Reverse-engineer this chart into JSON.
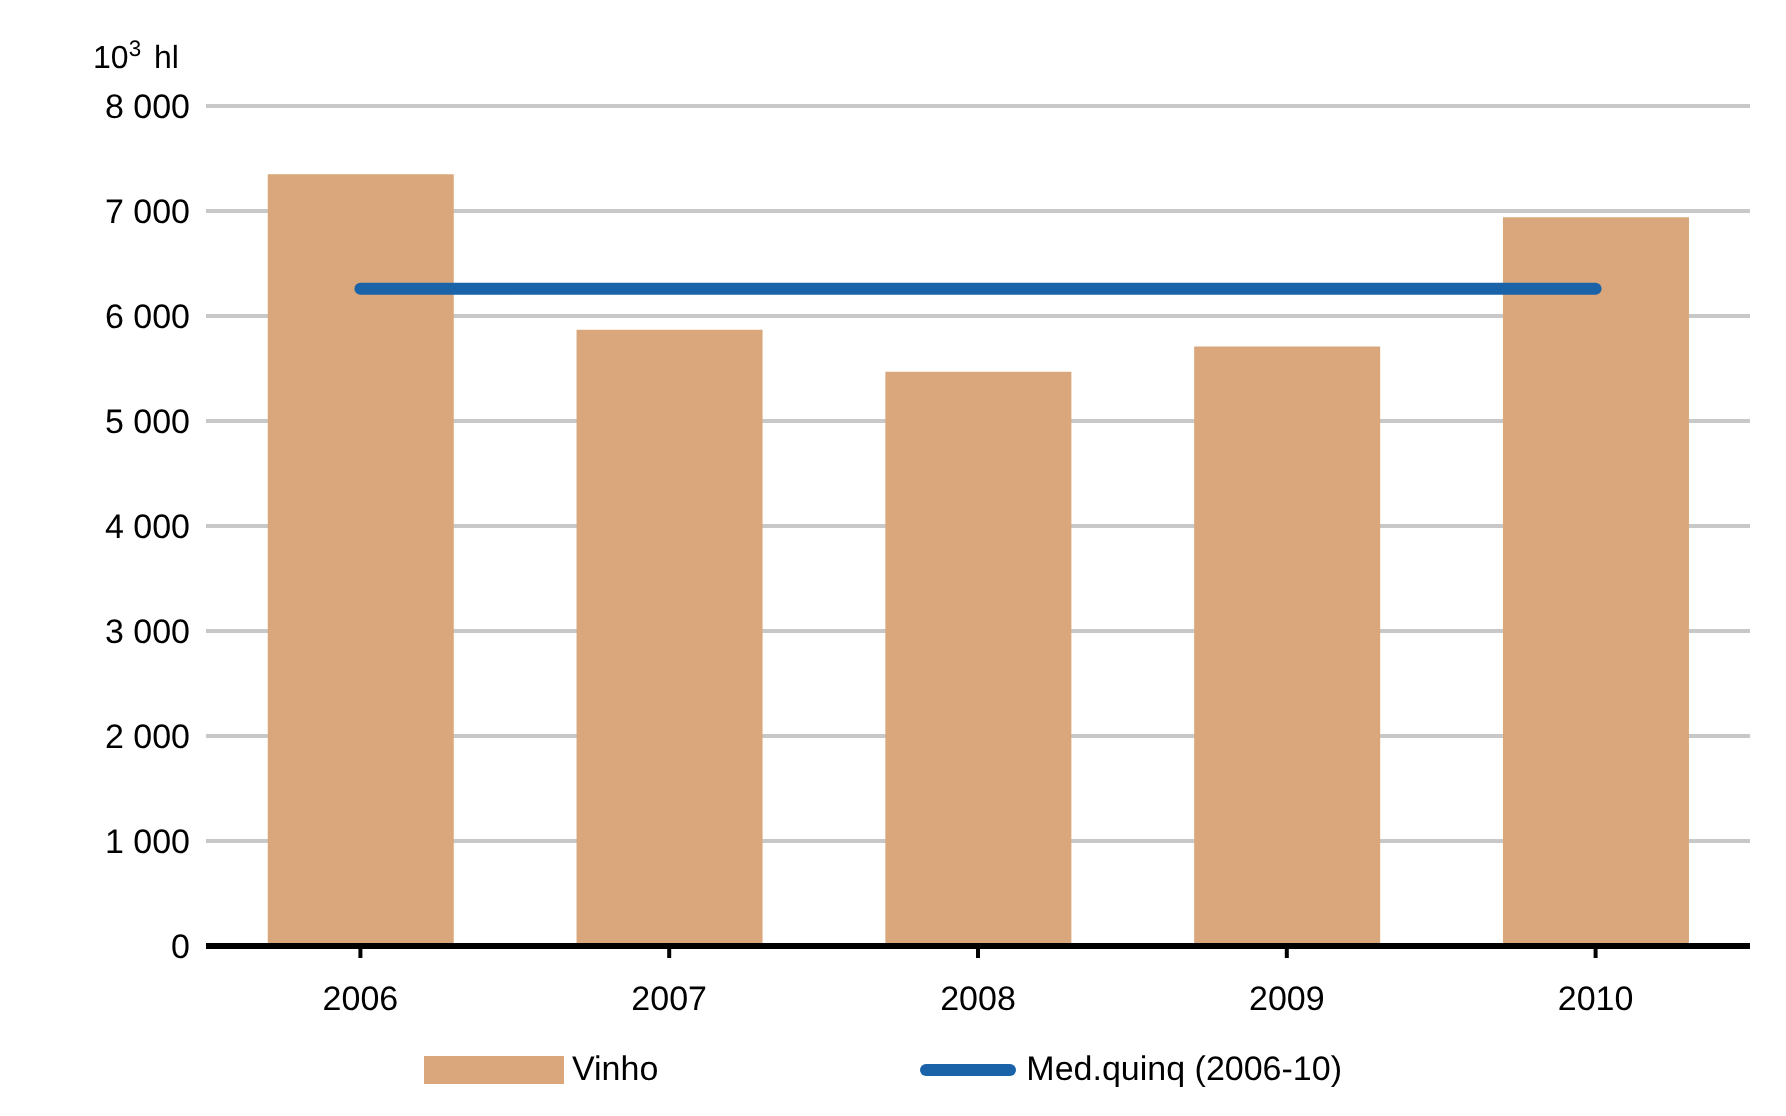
{
  "chart_data": {
    "type": "bar",
    "ylabel": "10$^{3}$ hl",
    "categories": [
      "2006",
      "2007",
      "2008",
      "2009",
      "2010"
    ],
    "series": [
      {
        "name": "Vinho",
        "color": "#d9a77b",
        "values": [
          7350,
          5870,
          5470,
          5710,
          6940
        ]
      },
      {
        "name": "Med.quinq (2006-10)",
        "type": "line",
        "color": "#1a63a8",
        "values": [
          6260,
          6260,
          6260,
          6260,
          6260
        ]
      }
    ],
    "ylim": [
      0,
      8000
    ],
    "yticks": [
      {
        "value": 0,
        "label": "0"
      },
      {
        "value": 1000,
        "label": "1 000"
      },
      {
        "value": 2000,
        "label": "2 000"
      },
      {
        "value": 3000,
        "label": "3 000"
      },
      {
        "value": 4000,
        "label": "4 000"
      },
      {
        "value": 5000,
        "label": "5 000"
      },
      {
        "value": 6000,
        "label": "6 000"
      },
      {
        "value": 7000,
        "label": "7 000"
      },
      {
        "value": 8000,
        "label": "8 000"
      }
    ],
    "grid": "y",
    "legend": "bottom",
    "marker": "none",
    "line_style": "solid"
  }
}
